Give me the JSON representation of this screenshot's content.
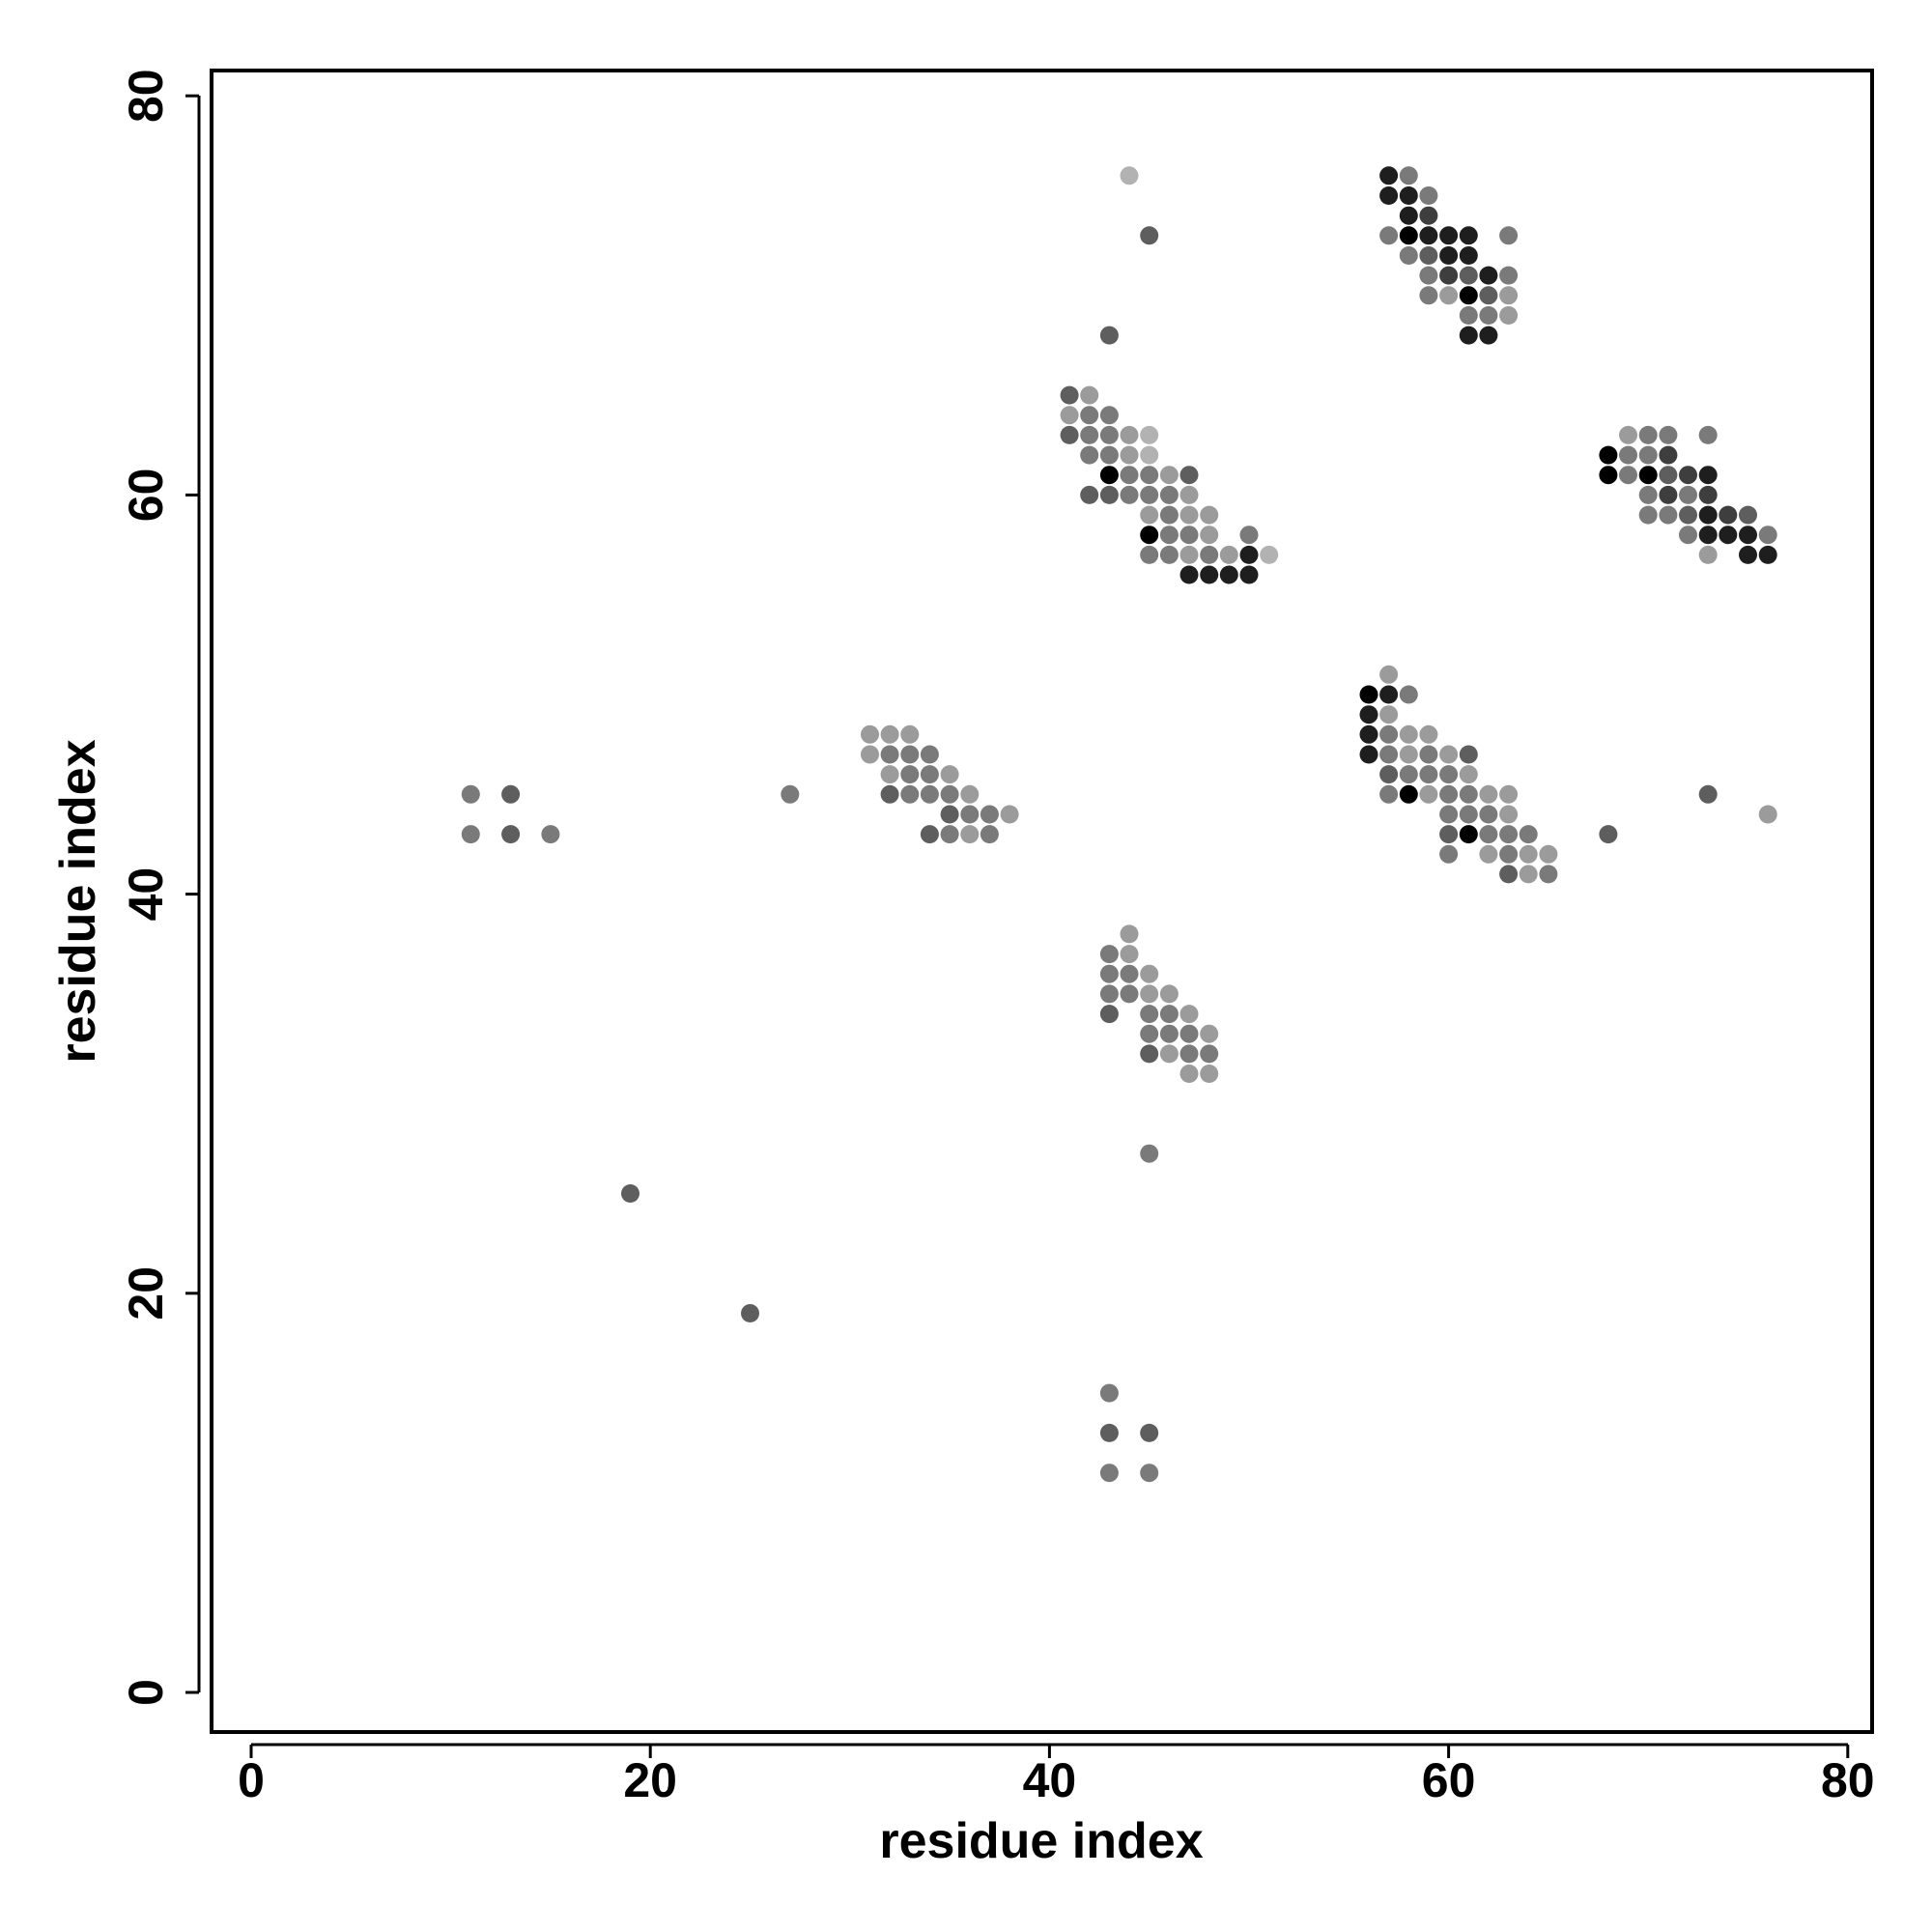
{
  "chart_data": {
    "type": "scatter",
    "xlabel": "residue index",
    "ylabel": "residue index",
    "xlim": [
      -2,
      81
    ],
    "ylim": [
      -2,
      81
    ],
    "x_ticks": [
      "0",
      "20",
      "40",
      "60",
      "80"
    ],
    "y_ticks": [
      "0",
      "20",
      "40",
      "60",
      "80"
    ],
    "grid": false,
    "legend": "none",
    "marker_shades": [
      "#000000",
      "#1e1e1e",
      "#3e3e3e",
      "#5e5e5e",
      "#7a7a7a",
      "#9b9b9b",
      "#b2b2b2"
    ],
    "points": [
      [
        44,
        76,
        6
      ],
      [
        45,
        73,
        3
      ],
      [
        43,
        68,
        3
      ],
      [
        57,
        76,
        1
      ],
      [
        58,
        76,
        4
      ],
      [
        57,
        75,
        1
      ],
      [
        58,
        75,
        1
      ],
      [
        59,
        75,
        4
      ],
      [
        58,
        74,
        1
      ],
      [
        59,
        74,
        2
      ],
      [
        57,
        73,
        4
      ],
      [
        58,
        73,
        0
      ],
      [
        59,
        73,
        1
      ],
      [
        60,
        73,
        1
      ],
      [
        61,
        73,
        1
      ],
      [
        63,
        73,
        4
      ],
      [
        58,
        72,
        4
      ],
      [
        59,
        72,
        3
      ],
      [
        60,
        72,
        1
      ],
      [
        61,
        72,
        1
      ],
      [
        59,
        71,
        4
      ],
      [
        60,
        71,
        2
      ],
      [
        61,
        71,
        3
      ],
      [
        62,
        71,
        1
      ],
      [
        63,
        71,
        4
      ],
      [
        59,
        70,
        4
      ],
      [
        60,
        70,
        5
      ],
      [
        61,
        70,
        0
      ],
      [
        62,
        70,
        3
      ],
      [
        63,
        70,
        5
      ],
      [
        61,
        69,
        4
      ],
      [
        62,
        69,
        4
      ],
      [
        63,
        69,
        5
      ],
      [
        61,
        68,
        1
      ],
      [
        62,
        68,
        1
      ],
      [
        41,
        65,
        3
      ],
      [
        42,
        65,
        5
      ],
      [
        41,
        64,
        5
      ],
      [
        42,
        64,
        4
      ],
      [
        43,
        64,
        4
      ],
      [
        41,
        63,
        3
      ],
      [
        42,
        63,
        4
      ],
      [
        43,
        63,
        4
      ],
      [
        44,
        63,
        5
      ],
      [
        45,
        63,
        6
      ],
      [
        42,
        62,
        4
      ],
      [
        43,
        62,
        4
      ],
      [
        44,
        62,
        5
      ],
      [
        45,
        62,
        6
      ],
      [
        43,
        61,
        0
      ],
      [
        44,
        61,
        4
      ],
      [
        45,
        61,
        4
      ],
      [
        46,
        61,
        5
      ],
      [
        47,
        61,
        3
      ],
      [
        42,
        60,
        3
      ],
      [
        43,
        60,
        3
      ],
      [
        44,
        60,
        4
      ],
      [
        45,
        60,
        4
      ],
      [
        46,
        60,
        4
      ],
      [
        47,
        60,
        5
      ],
      [
        45,
        59,
        5
      ],
      [
        46,
        59,
        4
      ],
      [
        47,
        59,
        5
      ],
      [
        48,
        59,
        5
      ],
      [
        45,
        58,
        0
      ],
      [
        46,
        58,
        4
      ],
      [
        47,
        58,
        4
      ],
      [
        48,
        58,
        5
      ],
      [
        50,
        58,
        4
      ],
      [
        45,
        57,
        4
      ],
      [
        46,
        57,
        4
      ],
      [
        47,
        57,
        5
      ],
      [
        48,
        57,
        4
      ],
      [
        49,
        57,
        5
      ],
      [
        50,
        57,
        1
      ],
      [
        51,
        57,
        6
      ],
      [
        47,
        56,
        1
      ],
      [
        48,
        56,
        1
      ],
      [
        49,
        56,
        1
      ],
      [
        50,
        56,
        1
      ],
      [
        68,
        62,
        0
      ],
      [
        69,
        62,
        4
      ],
      [
        70,
        62,
        4
      ],
      [
        71,
        62,
        2
      ],
      [
        68,
        61,
        0
      ],
      [
        69,
        61,
        4
      ],
      [
        70,
        61,
        0
      ],
      [
        71,
        61,
        3
      ],
      [
        72,
        61,
        2
      ],
      [
        73,
        61,
        1
      ],
      [
        69,
        63,
        5
      ],
      [
        70,
        63,
        4
      ],
      [
        71,
        63,
        4
      ],
      [
        73,
        63,
        4
      ],
      [
        70,
        60,
        4
      ],
      [
        71,
        60,
        2
      ],
      [
        72,
        60,
        4
      ],
      [
        73,
        60,
        2
      ],
      [
        70,
        59,
        4
      ],
      [
        71,
        59,
        4
      ],
      [
        72,
        59,
        3
      ],
      [
        73,
        59,
        1
      ],
      [
        74,
        59,
        2
      ],
      [
        75,
        59,
        3
      ],
      [
        72,
        58,
        4
      ],
      [
        73,
        58,
        1
      ],
      [
        74,
        58,
        1
      ],
      [
        75,
        58,
        1
      ],
      [
        76,
        58,
        4
      ],
      [
        73,
        57,
        5
      ],
      [
        75,
        57,
        1
      ],
      [
        76,
        57,
        1
      ],
      [
        57,
        51,
        5
      ],
      [
        56,
        50,
        0
      ],
      [
        57,
        50,
        1
      ],
      [
        58,
        50,
        4
      ],
      [
        56,
        49,
        1
      ],
      [
        57,
        49,
        5
      ],
      [
        56,
        48,
        1
      ],
      [
        57,
        48,
        4
      ],
      [
        58,
        48,
        5
      ],
      [
        59,
        48,
        5
      ],
      [
        56,
        47,
        1
      ],
      [
        57,
        47,
        4
      ],
      [
        58,
        47,
        5
      ],
      [
        59,
        47,
        4
      ],
      [
        60,
        47,
        5
      ],
      [
        61,
        47,
        3
      ],
      [
        57,
        46,
        3
      ],
      [
        58,
        46,
        4
      ],
      [
        59,
        46,
        4
      ],
      [
        60,
        46,
        4
      ],
      [
        61,
        46,
        5
      ],
      [
        57,
        45,
        4
      ],
      [
        58,
        45,
        0
      ],
      [
        59,
        45,
        5
      ],
      [
        60,
        45,
        4
      ],
      [
        61,
        45,
        4
      ],
      [
        62,
        45,
        5
      ],
      [
        63,
        45,
        5
      ],
      [
        60,
        44,
        4
      ],
      [
        61,
        44,
        4
      ],
      [
        62,
        44,
        4
      ],
      [
        63,
        44,
        5
      ],
      [
        60,
        43,
        3
      ],
      [
        61,
        43,
        0
      ],
      [
        62,
        43,
        4
      ],
      [
        63,
        43,
        4
      ],
      [
        64,
        43,
        4
      ],
      [
        60,
        42,
        4
      ],
      [
        62,
        42,
        5
      ],
      [
        63,
        42,
        4
      ],
      [
        64,
        42,
        5
      ],
      [
        65,
        42,
        5
      ],
      [
        63,
        41,
        3
      ],
      [
        64,
        41,
        5
      ],
      [
        65,
        41,
        4
      ],
      [
        68,
        43,
        3
      ],
      [
        73,
        45,
        3
      ],
      [
        76,
        44,
        5
      ],
      [
        31,
        48,
        5
      ],
      [
        32,
        48,
        5
      ],
      [
        33,
        48,
        5
      ],
      [
        31,
        47,
        5
      ],
      [
        32,
        47,
        4
      ],
      [
        33,
        47,
        4
      ],
      [
        34,
        47,
        4
      ],
      [
        32,
        46,
        5
      ],
      [
        33,
        46,
        4
      ],
      [
        34,
        46,
        4
      ],
      [
        35,
        46,
        5
      ],
      [
        32,
        45,
        3
      ],
      [
        33,
        45,
        4
      ],
      [
        34,
        45,
        4
      ],
      [
        35,
        45,
        4
      ],
      [
        36,
        45,
        5
      ],
      [
        35,
        44,
        3
      ],
      [
        36,
        44,
        4
      ],
      [
        37,
        44,
        4
      ],
      [
        38,
        44,
        5
      ],
      [
        34,
        43,
        3
      ],
      [
        35,
        43,
        4
      ],
      [
        36,
        43,
        5
      ],
      [
        37,
        43,
        4
      ],
      [
        27,
        45,
        4
      ],
      [
        11,
        45,
        4
      ],
      [
        13,
        45,
        3
      ],
      [
        11,
        43,
        4
      ],
      [
        13,
        43,
        3
      ],
      [
        15,
        43,
        4
      ],
      [
        44,
        38,
        5
      ],
      [
        43,
        37,
        4
      ],
      [
        44,
        37,
        5
      ],
      [
        43,
        36,
        4
      ],
      [
        44,
        36,
        4
      ],
      [
        45,
        36,
        5
      ],
      [
        43,
        35,
        4
      ],
      [
        44,
        35,
        4
      ],
      [
        45,
        35,
        5
      ],
      [
        46,
        35,
        5
      ],
      [
        43,
        34,
        3
      ],
      [
        45,
        34,
        4
      ],
      [
        46,
        34,
        4
      ],
      [
        47,
        34,
        5
      ],
      [
        45,
        33,
        4
      ],
      [
        46,
        33,
        4
      ],
      [
        47,
        33,
        4
      ],
      [
        48,
        33,
        5
      ],
      [
        45,
        32,
        3
      ],
      [
        46,
        32,
        5
      ],
      [
        47,
        32,
        4
      ],
      [
        48,
        32,
        4
      ],
      [
        47,
        31,
        5
      ],
      [
        48,
        31,
        5
      ],
      [
        45,
        27,
        4
      ],
      [
        19,
        25,
        3
      ],
      [
        25,
        19,
        3
      ],
      [
        43,
        15,
        4
      ],
      [
        43,
        13,
        3
      ],
      [
        45,
        13,
        3
      ],
      [
        43,
        11,
        4
      ],
      [
        45,
        11,
        4
      ]
    ]
  }
}
